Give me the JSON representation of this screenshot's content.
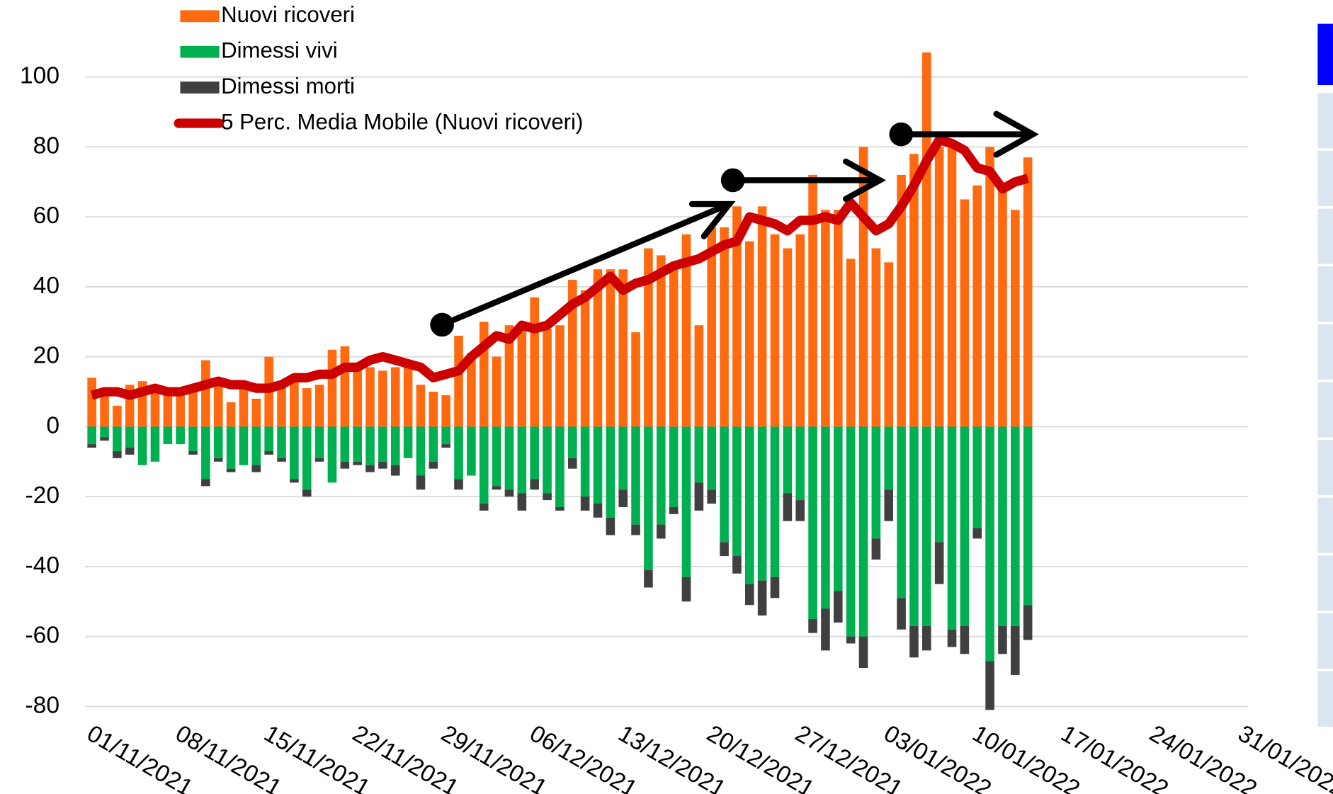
{
  "chart_data": {
    "type": "bar",
    "x": [
      "01/11/2021",
      "02/11/2021",
      "03/11/2021",
      "04/11/2021",
      "05/11/2021",
      "06/11/2021",
      "07/11/2021",
      "08/11/2021",
      "09/11/2021",
      "10/11/2021",
      "11/11/2021",
      "12/11/2021",
      "13/11/2021",
      "14/11/2021",
      "15/11/2021",
      "16/11/2021",
      "17/11/2021",
      "18/11/2021",
      "19/11/2021",
      "20/11/2021",
      "21/11/2021",
      "22/11/2021",
      "23/11/2021",
      "24/11/2021",
      "25/11/2021",
      "26/11/2021",
      "27/11/2021",
      "28/11/2021",
      "29/11/2021",
      "30/11/2021",
      "01/12/2021",
      "02/12/2021",
      "03/12/2021",
      "04/12/2021",
      "05/12/2021",
      "06/12/2021",
      "07/12/2021",
      "08/12/2021",
      "09/12/2021",
      "10/12/2021",
      "11/12/2021",
      "12/12/2021",
      "13/12/2021",
      "14/12/2021",
      "15/12/2021",
      "16/12/2021",
      "17/12/2021",
      "18/12/2021",
      "19/12/2021",
      "20/12/2021",
      "21/12/2021",
      "22/12/2021",
      "23/12/2021",
      "24/12/2021",
      "25/12/2021",
      "26/12/2021",
      "27/12/2021",
      "28/12/2021",
      "29/12/2021",
      "30/12/2021",
      "31/12/2021",
      "01/01/2022",
      "02/01/2022",
      "03/01/2022",
      "04/01/2022",
      "05/01/2022",
      "06/01/2022",
      "07/01/2022",
      "08/01/2022",
      "09/01/2022",
      "10/01/2022",
      "11/01/2022",
      "12/01/2022",
      "13/01/2022",
      "14/01/2022"
    ],
    "series": [
      {
        "name": "Nuovi ricoveri",
        "color": "#ff6a10",
        "values": [
          14,
          10,
          6,
          12,
          13,
          10,
          9,
          10,
          12,
          19,
          13,
          7,
          11,
          8,
          20,
          12,
          14,
          11,
          12,
          22,
          23,
          16,
          17,
          16,
          17,
          17,
          12,
          10,
          9,
          26,
          21,
          30,
          20,
          29,
          28,
          37,
          28,
          29,
          42,
          39,
          45,
          45,
          45,
          27,
          51,
          49,
          45,
          55,
          29,
          57,
          57,
          63,
          53,
          63,
          55,
          51,
          55,
          72,
          62,
          62,
          48,
          80,
          51,
          47,
          72,
          78,
          107,
          80,
          80,
          65,
          69,
          80,
          68,
          62,
          77
        ]
      },
      {
        "name": "Dimessi vivi",
        "color": "#00b050",
        "values": [
          -5,
          -3,
          -7,
          -6,
          -11,
          -10,
          -5,
          -5,
          -7,
          -15,
          -9,
          -12,
          -11,
          -11,
          -7,
          -9,
          -15,
          -18,
          -9,
          -16,
          -10,
          -10,
          -11,
          -10,
          -11,
          -9,
          -14,
          -10,
          -5,
          -15,
          -14,
          -22,
          -17,
          -18,
          -19,
          -15,
          -19,
          -23,
          -9,
          -20,
          -22,
          -26,
          -18,
          -28,
          -41,
          -28,
          -23,
          -43,
          -16,
          -18,
          -33,
          -37,
          -45,
          -44,
          -43,
          -19,
          -21,
          -55,
          -52,
          -47,
          -60,
          -60,
          -32,
          -18,
          -49,
          -57,
          -57,
          -33,
          -58,
          -57,
          -29,
          -67,
          -57,
          -57,
          -51
        ]
      },
      {
        "name": "Dimessi morti",
        "color": "#404040",
        "values": [
          -1,
          -1,
          -2,
          -2,
          0,
          0,
          0,
          0,
          -1,
          -2,
          -1,
          -1,
          0,
          -2,
          -1,
          -1,
          -1,
          -2,
          -1,
          0,
          -2,
          -1,
          -2,
          -2,
          -3,
          0,
          -4,
          -2,
          -1,
          -3,
          0,
          -2,
          -1,
          -2,
          -5,
          -3,
          -2,
          -1,
          -3,
          -4,
          -4,
          -5,
          -5,
          -3,
          -5,
          -4,
          -2,
          -7,
          -8,
          -4,
          -4,
          -5,
          -6,
          -10,
          -6,
          -8,
          -6,
          -4,
          -12,
          -9,
          -2,
          -9,
          -6,
          -9,
          -9,
          -9,
          -7,
          -12,
          -5,
          -8,
          -3,
          -14,
          -8,
          -14,
          -10
        ]
      },
      {
        "name": "5 Perc. Media Mobile (Nuovi ricoveri)",
        "color": "#cc0000",
        "type": "line",
        "values": [
          9,
          10,
          10,
          9,
          10,
          11,
          10,
          10,
          11,
          12,
          13,
          12,
          12,
          11,
          11,
          12,
          14,
          14,
          15,
          15,
          17,
          17,
          19,
          20,
          19,
          18,
          17,
          14,
          15,
          16,
          20,
          23,
          26,
          25,
          29,
          28,
          29,
          32,
          35,
          37,
          40,
          43,
          39,
          41,
          42,
          44,
          46,
          47,
          48,
          50,
          52,
          53,
          60,
          59,
          58,
          56,
          59,
          59,
          60,
          59,
          64,
          60,
          56,
          58,
          63,
          69,
          76,
          82,
          81,
          79,
          74,
          73,
          68,
          70,
          71
        ]
      }
    ],
    "xlim": [
      "01/11/2021",
      "31/01/2022"
    ],
    "xticks": [
      "01/11/2021",
      "08/11/2021",
      "15/11/2021",
      "22/11/2021",
      "29/11/2021",
      "06/12/2021",
      "13/12/2021",
      "20/12/2021",
      "27/12/2021",
      "03/01/2022",
      "10/01/2022",
      "17/01/2022",
      "24/01/2022",
      "31/01/2022"
    ],
    "ylim": [
      -80,
      110
    ],
    "yticks": [
      -80,
      -60,
      -40,
      -20,
      0,
      20,
      40,
      60,
      80,
      100
    ],
    "grid": true,
    "legend": "top-left"
  }
}
